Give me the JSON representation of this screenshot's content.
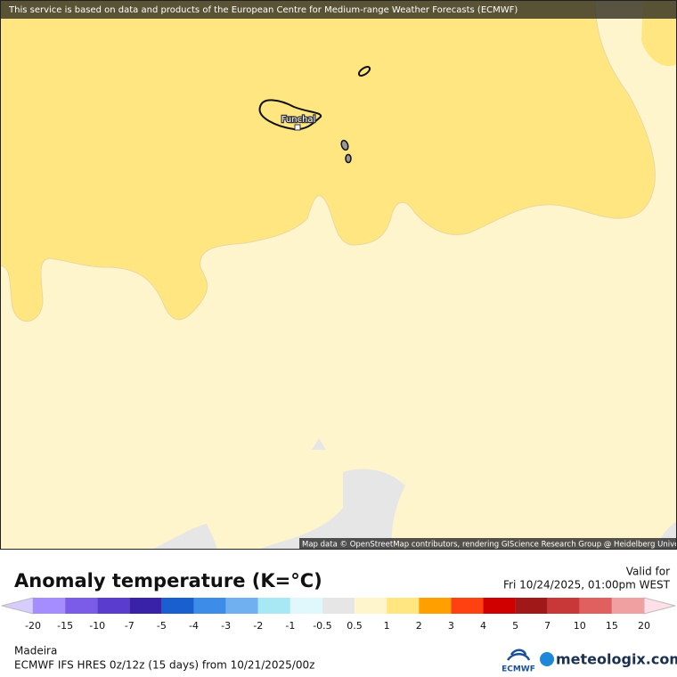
{
  "banner": "This service is based on data and products of the European Centre for Medium-range Weather Forecasts (ECMWF)",
  "map": {
    "place_label": "Funchal",
    "attribution": "Map data © OpenStreetMap contributors, rendering GIScience Research Group @ Heidelberg University"
  },
  "legend": {
    "title": "Anomaly temperature (K=°C)",
    "valid_label": "Valid for",
    "valid_time": "Fri 10/24/2025, 01:00pm WEST",
    "ticks": [
      "-20",
      "-15",
      "-10",
      "-7",
      "-5",
      "-4",
      "-3",
      "-2",
      "-1",
      "-0.5",
      "0.5",
      "1",
      "2",
      "3",
      "4",
      "5",
      "7",
      "10",
      "15",
      "20"
    ],
    "colors": [
      "#a58cff",
      "#7b5ce8",
      "#5a3ccf",
      "#3a22a8",
      "#1a5fcf",
      "#3d8ce8",
      "#70b0f0",
      "#a8e8f5",
      "#e0f8fc",
      "#e6e6e6",
      "#fff5cc",
      "#ffe680",
      "#ffa000",
      "#ff4010",
      "#d00000",
      "#a01818",
      "#c83838",
      "#e06060",
      "#f0a0a0"
    ],
    "under_color": "#d8ccff",
    "over_color": "#ffe0e8"
  },
  "footer": {
    "region": "Madeira",
    "model": "ECMWF IFS HRES 0z/12z (15 days) from 10/21/2025/00z",
    "ecmwf_logo": "ECMWF",
    "brand": "meteologix.com"
  }
}
